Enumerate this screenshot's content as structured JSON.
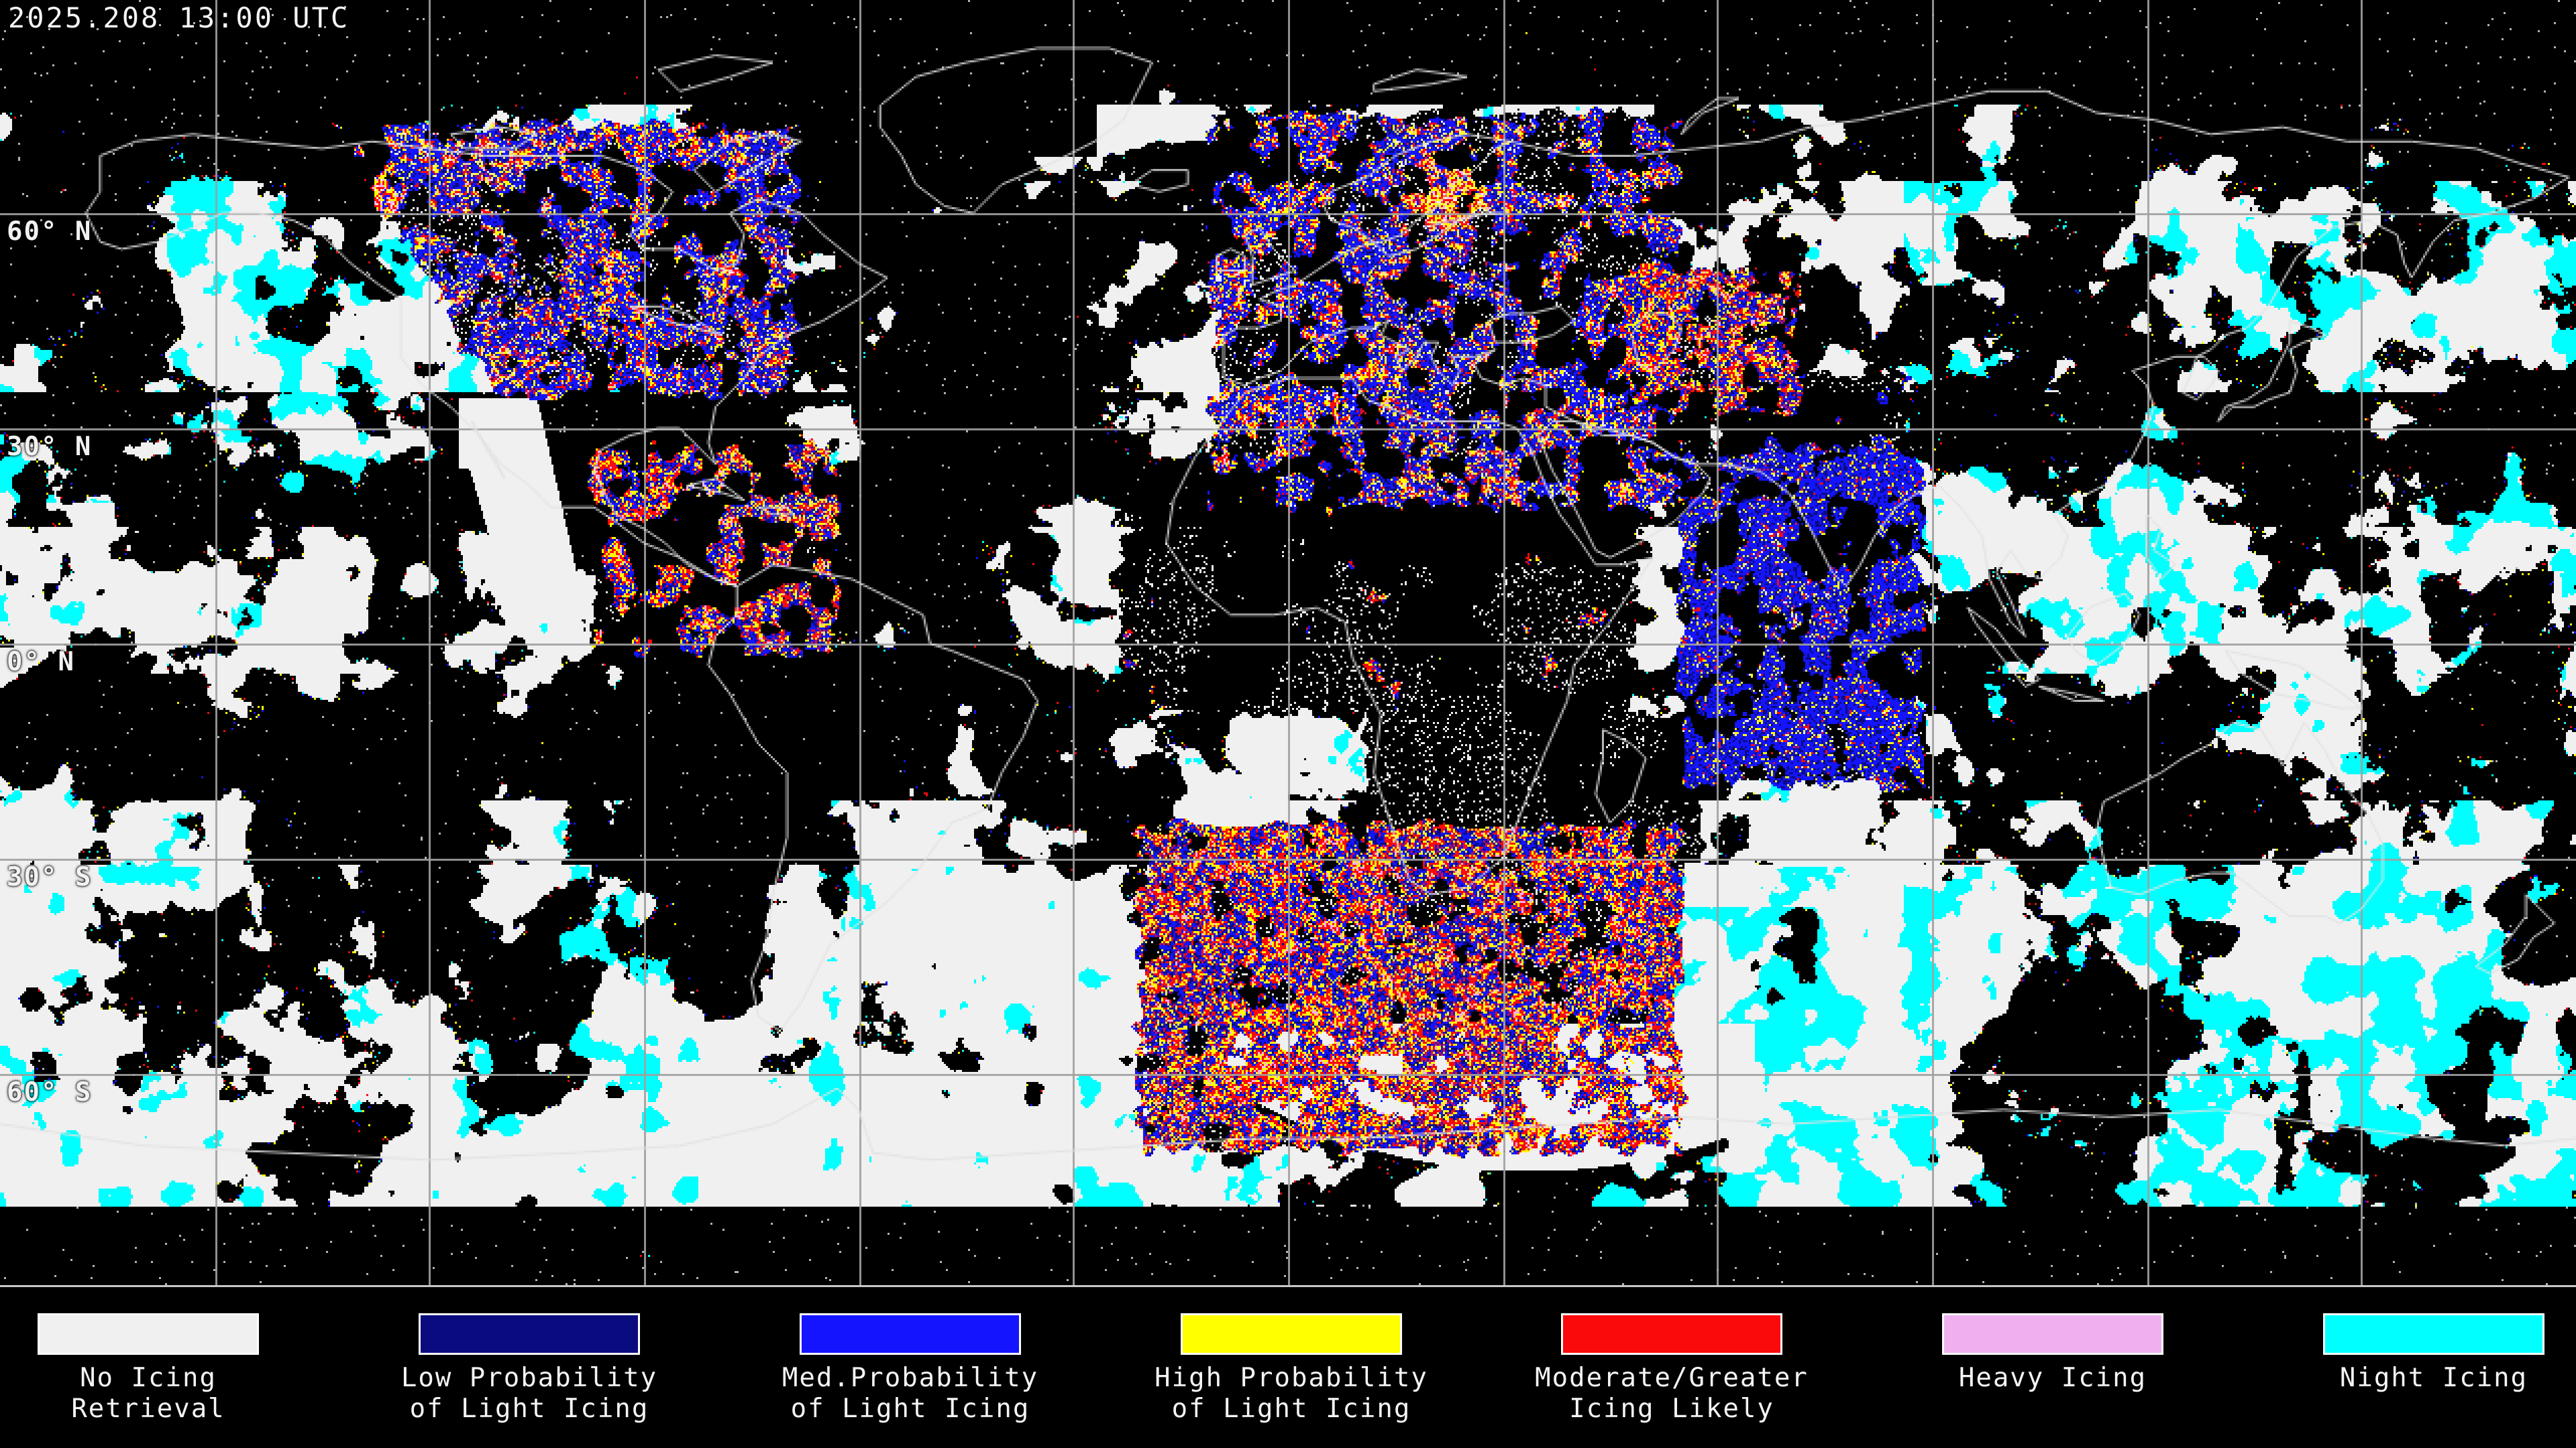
{
  "header": {
    "timestamp": "2025.208 13:00 UTC"
  },
  "map": {
    "projection": "equirectangular",
    "latitude_labels": [
      {
        "text": "60° N",
        "lat": 60
      },
      {
        "text": "30° N",
        "lat": 30
      },
      {
        "text": "0° N",
        "lat": 0
      },
      {
        "text": "30° S",
        "lat": -30
      },
      {
        "text": "60° S",
        "lat": -60
      }
    ],
    "grid": {
      "lon_spacing_deg": 30,
      "lat_spacing_deg": 30,
      "line_color": "#a0a0a0"
    },
    "colors": {
      "background": "#000000",
      "coastline": "#e2e2e2",
      "no_icing_retrieval": "#f0f0f0",
      "low_prob_light_icing": "#0b0b80",
      "med_prob_light_icing": "#1414ff",
      "high_prob_light_icing": "#ffff00",
      "moderate_greater_icing": "#fa0a0a",
      "heavy_icing": "#f0b0f0",
      "night_icing": "#00ffff"
    }
  },
  "legend": {
    "items": [
      {
        "key": "no_icing_retrieval",
        "color": "#f0f0f0",
        "label_lines": [
          "No Icing",
          "Retrieval"
        ]
      },
      {
        "key": "low_prob_light_icing",
        "color": "#0b0b80",
        "label_lines": [
          "Low Probability",
          "of Light Icing"
        ]
      },
      {
        "key": "med_prob_light_icing",
        "color": "#1414ff",
        "label_lines": [
          "Med.Probability",
          "of Light Icing"
        ]
      },
      {
        "key": "high_prob_light_icing",
        "color": "#ffff00",
        "label_lines": [
          "High Probability",
          "of Light Icing"
        ]
      },
      {
        "key": "moderate_greater_icing",
        "color": "#fa0a0a",
        "label_lines": [
          "Moderate/Greater",
          "Icing Likely"
        ]
      },
      {
        "key": "heavy_icing",
        "color": "#f0b0f0",
        "label_lines": [
          "Heavy Icing"
        ]
      },
      {
        "key": "night_icing",
        "color": "#00ffff",
        "label_lines": [
          "Night Icing"
        ]
      }
    ]
  }
}
